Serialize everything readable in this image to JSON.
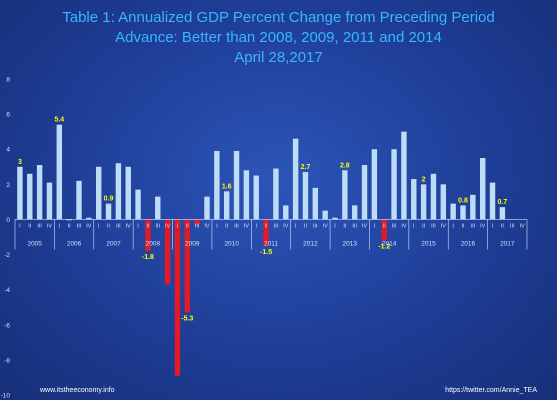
{
  "title_lines": [
    "Table 1: Annualized GDP Percent Change from Preceding Period",
    "Advance: Better than 2008, 2009, 2011 and 2014",
    "April 28,2017"
  ],
  "footer": {
    "left": "www.itstheeconomy.info",
    "right": "https://twitter.com/Annie_TEA"
  },
  "chart_data": {
    "type": "bar",
    "ylim": [
      -10,
      8
    ],
    "yticks": [
      -10,
      -8,
      -6,
      -4,
      -2,
      0,
      2,
      4,
      6,
      8
    ],
    "grid": false,
    "quarter_labels": [
      "I",
      "II",
      "III",
      "IV"
    ],
    "years": [
      "2005",
      "2006",
      "2007",
      "2008",
      "2009",
      "2010",
      "2011",
      "2012",
      "2013",
      "2014",
      "2015",
      "2016",
      "2017"
    ],
    "values": [
      3.0,
      2.6,
      3.1,
      2.1,
      5.4,
      0.0,
      2.2,
      0.1,
      3.0,
      0.9,
      3.2,
      3.0,
      1.7,
      -1.8,
      1.3,
      -3.7,
      -8.9,
      -5.3,
      -0.3,
      1.3,
      3.9,
      1.6,
      3.9,
      2.8,
      2.5,
      -1.5,
      2.9,
      0.8,
      4.6,
      2.7,
      1.8,
      0.5,
      0.1,
      2.8,
      0.8,
      3.1,
      4.0,
      -1.2,
      4.0,
      5.0,
      2.3,
      2.0,
      2.6,
      2.0,
      0.9,
      0.8,
      1.4,
      3.5,
      2.1,
      0.7
    ],
    "data_labels": [
      {
        "index": 0,
        "text": "3"
      },
      {
        "index": 4,
        "text": "5.4"
      },
      {
        "index": 9,
        "text": "0.9"
      },
      {
        "index": 13,
        "text": "-1.8"
      },
      {
        "index": 17,
        "text": "-5.3"
      },
      {
        "index": 21,
        "text": "1.6"
      },
      {
        "index": 25,
        "text": "-1.5"
      },
      {
        "index": 29,
        "text": "2.7"
      },
      {
        "index": 33,
        "text": "2.8"
      },
      {
        "index": 37,
        "text": "-1.2"
      },
      {
        "index": 41,
        "text": "2"
      },
      {
        "index": 45,
        "text": "0.8"
      },
      {
        "index": 49,
        "text": "0.7"
      }
    ],
    "colors": {
      "positive": "#bcdcf7",
      "negative": "#e01b24",
      "label": "#ffff00",
      "axis_text": "#cfe2ff",
      "axis_line": "#cfe2ff"
    }
  }
}
